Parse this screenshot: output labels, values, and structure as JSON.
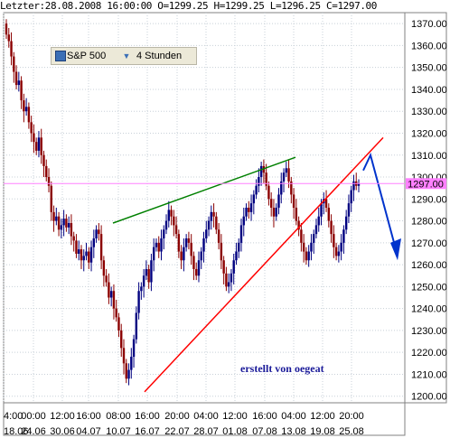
{
  "header": {
    "last_label": "Letzter:",
    "datetime": "28.08.2008 16:00:00",
    "open": "O=1299.25",
    "high": "H=1299.25",
    "low": "L=1296.25",
    "close": "C=1297.00"
  },
  "selector": {
    "symbol": "S&P 500",
    "interval": "4 Stunden",
    "icon": "chart-window-icon",
    "dropdown_icon": "chevron-down-icon"
  },
  "colors": {
    "background": "#ffffff",
    "grid": "#c8d0d8",
    "candle_up": "#000080",
    "candle_down": "#8b0000",
    "price_line": "#ff80ff",
    "support_line": "#ff0000",
    "resistance_line": "#008000",
    "projection_arrow": "#0033cc",
    "annotation": "#1a1a99"
  },
  "chart_data": {
    "type": "candlestick",
    "y_ticks": [
      1200,
      1210,
      1220,
      1230,
      1240,
      1250,
      1260,
      1270,
      1280,
      1290,
      1300,
      1310,
      1320,
      1330,
      1340,
      1350,
      1360,
      1370
    ],
    "ylim": [
      1197,
      1375
    ],
    "x_tick_labels": [
      "4:00",
      "00:00",
      "12:00",
      "16:00",
      "08:00",
      "16:00",
      "20:00",
      "04:00",
      "12:00",
      "16:00",
      "04:00",
      "12:00",
      "20:00"
    ],
    "date_labels": [
      "18.06",
      "24.06",
      "30.06",
      "04.07",
      "10.07",
      "16.07",
      "22.07",
      "28.07",
      "01.08",
      "07.08",
      "13.08",
      "19.08",
      "25.08"
    ],
    "current_price": "1297.00",
    "current_price_value": 1297.0,
    "annotation": "erstellt von oegeat",
    "closes": [
      1365,
      1362,
      1355,
      1348,
      1342,
      1344,
      1335,
      1330,
      1332,
      1325,
      1320,
      1316,
      1312,
      1318,
      1310,
      1305,
      1300,
      1296,
      1284,
      1280,
      1282,
      1276,
      1278,
      1281,
      1277,
      1279,
      1273,
      1271,
      1265,
      1267,
      1262,
      1264,
      1266,
      1261,
      1268,
      1272,
      1276,
      1274,
      1262,
      1255,
      1252,
      1245,
      1248,
      1240,
      1236,
      1230,
      1222,
      1215,
      1208,
      1212,
      1218,
      1226,
      1238,
      1248,
      1250,
      1255,
      1258,
      1252,
      1262,
      1268,
      1270,
      1266,
      1272,
      1276,
      1280,
      1285,
      1282,
      1278,
      1274,
      1266,
      1262,
      1268,
      1272,
      1270,
      1264,
      1258,
      1255,
      1262,
      1266,
      1272,
      1276,
      1280,
      1284,
      1282,
      1276,
      1270,
      1262,
      1256,
      1250,
      1252,
      1256,
      1262,
      1266,
      1270,
      1278,
      1282,
      1286,
      1284,
      1288,
      1292,
      1296,
      1300,
      1305,
      1302,
      1296,
      1290,
      1286,
      1282,
      1286,
      1292,
      1298,
      1302,
      1304,
      1298,
      1292,
      1286,
      1280,
      1276,
      1270,
      1266,
      1262,
      1266,
      1270,
      1274,
      1278,
      1282,
      1288,
      1290,
      1286,
      1280,
      1274,
      1268,
      1264,
      1266,
      1270,
      1276,
      1282,
      1288,
      1294,
      1298,
      1296,
      1297
    ],
    "support_line": {
      "from": [
        "16.07 16:00",
        1202
      ],
      "to": [
        "25.08 20:00+",
        1318
      ]
    },
    "resistance_line": {
      "from": [
        "10.07 08:00",
        1279
      ],
      "to": [
        "19.08 04:00",
        1309
      ]
    },
    "projection": {
      "from": 1310,
      "mid": 1305,
      "to": 1263
    }
  }
}
